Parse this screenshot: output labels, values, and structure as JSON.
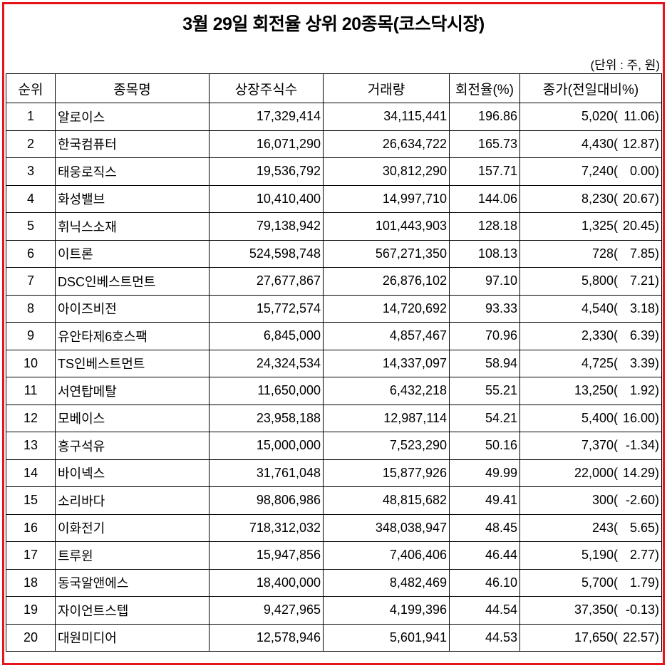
{
  "title": "3월 29일 회전율 상위 20종목(코스닥시장)",
  "unit_note": "(단위 : 주, 원)",
  "columns": [
    "순위",
    "종목명",
    "상장주식수",
    "거래량",
    "회전율(%)",
    "종가(전일대비%)"
  ],
  "rows": [
    {
      "rank": "1",
      "name": "알로이스",
      "listed": "17,329,414",
      "volume": "34,115,441",
      "turnover": "196.86",
      "price": "5,020(",
      "change": "11.06)"
    },
    {
      "rank": "2",
      "name": "한국컴퓨터",
      "listed": "16,071,290",
      "volume": "26,634,722",
      "turnover": "165.73",
      "price": "4,430(",
      "change": "12.87)"
    },
    {
      "rank": "3",
      "name": "태웅로직스",
      "listed": "19,536,792",
      "volume": "30,812,290",
      "turnover": "157.71",
      "price": "7,240(",
      "change": "0.00)"
    },
    {
      "rank": "4",
      "name": "화성밸브",
      "listed": "10,410,400",
      "volume": "14,997,710",
      "turnover": "144.06",
      "price": "8,230(",
      "change": "20.67)"
    },
    {
      "rank": "5",
      "name": "휘닉스소재",
      "listed": "79,138,942",
      "volume": "101,443,903",
      "turnover": "128.18",
      "price": "1,325(",
      "change": "20.45)"
    },
    {
      "rank": "6",
      "name": "이트론",
      "listed": "524,598,748",
      "volume": "567,271,350",
      "turnover": "108.13",
      "price": "728(",
      "change": "7.85)"
    },
    {
      "rank": "7",
      "name": "DSC인베스트먼트",
      "listed": "27,677,867",
      "volume": "26,876,102",
      "turnover": "97.10",
      "price": "5,800(",
      "change": "7.21)"
    },
    {
      "rank": "8",
      "name": "아이즈비전",
      "listed": "15,772,574",
      "volume": "14,720,692",
      "turnover": "93.33",
      "price": "4,540(",
      "change": "3.18)"
    },
    {
      "rank": "9",
      "name": "유안타제6호스팩",
      "listed": "6,845,000",
      "volume": "4,857,467",
      "turnover": "70.96",
      "price": "2,330(",
      "change": "6.39)"
    },
    {
      "rank": "10",
      "name": "TS인베스트먼트",
      "listed": "24,324,534",
      "volume": "14,337,097",
      "turnover": "58.94",
      "price": "4,725(",
      "change": "3.39)"
    },
    {
      "rank": "11",
      "name": "서연탑메탈",
      "listed": "11,650,000",
      "volume": "6,432,218",
      "turnover": "55.21",
      "price": "13,250(",
      "change": "1.92)"
    },
    {
      "rank": "12",
      "name": "모베이스",
      "listed": "23,958,188",
      "volume": "12,987,114",
      "turnover": "54.21",
      "price": "5,400(",
      "change": "16.00)"
    },
    {
      "rank": "13",
      "name": "흥구석유",
      "listed": "15,000,000",
      "volume": "7,523,290",
      "turnover": "50.16",
      "price": "7,370(",
      "change": "-1.34)"
    },
    {
      "rank": "14",
      "name": "바이넥스",
      "listed": "31,761,048",
      "volume": "15,877,926",
      "turnover": "49.99",
      "price": "22,000(",
      "change": "14.29)"
    },
    {
      "rank": "15",
      "name": "소리바다",
      "listed": "98,806,986",
      "volume": "48,815,682",
      "turnover": "49.41",
      "price": "300(",
      "change": "-2.60)"
    },
    {
      "rank": "16",
      "name": "이화전기",
      "listed": "718,312,032",
      "volume": "348,038,947",
      "turnover": "48.45",
      "price": "243(",
      "change": "5.65)"
    },
    {
      "rank": "17",
      "name": "트루윈",
      "listed": "15,947,856",
      "volume": "7,406,406",
      "turnover": "46.44",
      "price": "5,190(",
      "change": "2.77)"
    },
    {
      "rank": "18",
      "name": "동국알앤에스",
      "listed": "18,400,000",
      "volume": "8,482,469",
      "turnover": "46.10",
      "price": "5,700(",
      "change": "1.79)"
    },
    {
      "rank": "19",
      "name": "자이언트스텝",
      "listed": "9,427,965",
      "volume": "4,199,396",
      "turnover": "44.54",
      "price": "37,350(",
      "change": "-0.13)"
    },
    {
      "rank": "20",
      "name": "대원미디어",
      "listed": "12,578,946",
      "volume": "5,601,941",
      "turnover": "44.53",
      "price": "17,650(",
      "change": "22.57)"
    }
  ]
}
